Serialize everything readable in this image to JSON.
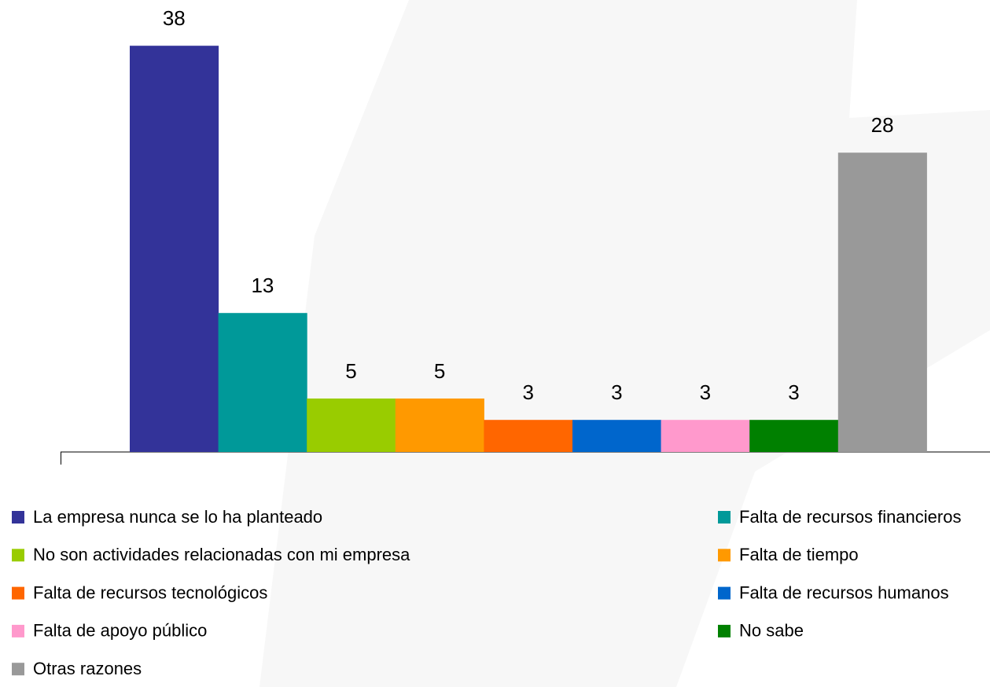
{
  "chart_data": {
    "type": "bar",
    "series": [
      {
        "name": "La empresa nunca se lo ha planteado",
        "color": "#333399",
        "values": [
          38
        ]
      },
      {
        "name": "Falta de recursos financieros",
        "color": "#009999",
        "values": [
          13
        ]
      },
      {
        "name": "No son actividades relacionadas con mi empresa",
        "color": "#99cc00",
        "values": [
          5
        ]
      },
      {
        "name": "Falta de tiempo",
        "color": "#ff9900",
        "values": [
          5
        ]
      },
      {
        "name": "Falta de recursos tecnológicos",
        "color": "#ff6600",
        "values": [
          3
        ]
      },
      {
        "name": "Falta de recursos humanos",
        "color": "#0066cc",
        "values": [
          3
        ]
      },
      {
        "name": "Falta de apoyo público",
        "color": "#ff99cc",
        "values": [
          3
        ]
      },
      {
        "name": "No sabe",
        "color": "#008000",
        "values": [
          3
        ]
      },
      {
        "name": "Otras razones",
        "color": "#999999",
        "values": [
          28
        ]
      }
    ]
  }
}
